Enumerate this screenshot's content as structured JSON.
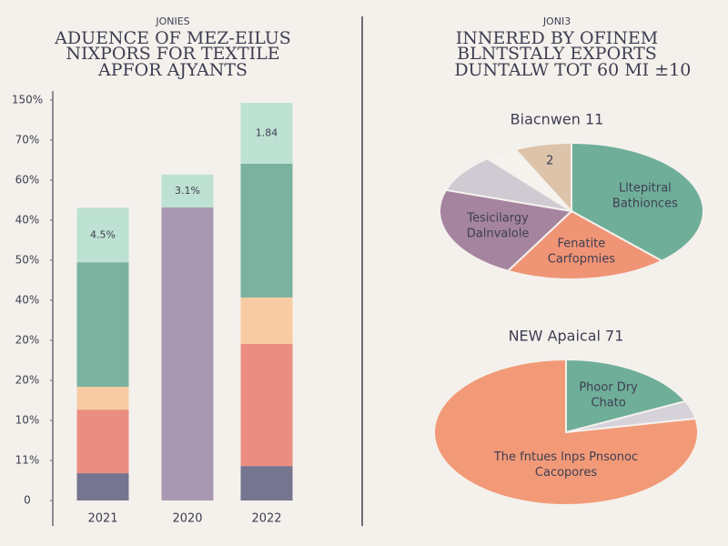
{
  "chart_data": [
    {
      "type": "bar",
      "stacked": true,
      "kicker": "JONIES",
      "title": [
        "ADUENCE OF MEZ-EILUS",
        "NIXPORS FOR TEXTILE",
        "APFOR AJYANTS"
      ],
      "categories": [
        "2021",
        "2020",
        "2022"
      ],
      "ylim": [
        0,
        100
      ],
      "yticks": [
        0,
        {
          "value": 10,
          "label": "11%"
        },
        {
          "value": 20,
          "label": "10%"
        },
        {
          "value": 30,
          "label": "20%"
        },
        {
          "value": 40,
          "label": "20%"
        },
        {
          "value": 50,
          "label": "40%"
        },
        {
          "value": 60,
          "label": "50%"
        },
        {
          "value": 70,
          "label": "40%"
        },
        {
          "value": 80,
          "label": "60%"
        },
        {
          "value": 90,
          "label": "70%"
        },
        {
          "value": 100,
          "label": "150%"
        }
      ],
      "series": [
        {
          "color": "#6a6a88",
          "values": [
            6.8,
            null,
            8.6
          ]
        },
        {
          "color": "#e98577",
          "values": [
            15.9,
            null,
            30.5
          ]
        },
        {
          "color": "#f6c99c",
          "values": [
            5.7,
            null,
            11.6
          ]
        },
        {
          "color": "#70ad98",
          "values": [
            31.1,
            null,
            33.4
          ]
        },
        {
          "color": "#a290ab",
          "values": [
            null,
            73.2,
            null
          ]
        },
        {
          "color": "#b7dfcf",
          "values": [
            13.6,
            8.2,
            15.2
          ]
        }
      ],
      "bar_labels": [
        "4.5%",
        "3.1%",
        "1.84"
      ]
    },
    {
      "type": "pie",
      "kicker": "JONI3",
      "title": [
        "INNERED BY OFINEM",
        "BLNTSTALY EXPORTS"
      ],
      "title_tail": [
        "DUNTALW TOT",
        "60 MI ±10"
      ],
      "subtitle": "Biacnwen 11",
      "values": [
        38,
        20,
        22,
        9,
        4,
        7
      ],
      "colors": [
        "#6fae99",
        "#f09476",
        "#a5849f",
        "#cfcbd3",
        "#f6f2ee",
        "#dcc3aa"
      ],
      "labels": [
        [
          "Lltepitral",
          "Bathionces"
        ],
        [
          "Fenatite",
          "Carfopmies"
        ],
        [
          "Tesicilargy",
          "Dalnvalole"
        ],
        null,
        null,
        [
          "2"
        ]
      ]
    },
    {
      "type": "pie",
      "subtitle": "NEW Apaical 71",
      "values": [
        18,
        4,
        78
      ],
      "colors": [
        "#6fae99",
        "#d6d2da",
        "#f29a78"
      ],
      "labels": [
        [
          "Phoor Dry",
          "Chato"
        ],
        null,
        [
          "The fntues lnps Pnsonoc",
          "Cacopores"
        ]
      ]
    }
  ]
}
